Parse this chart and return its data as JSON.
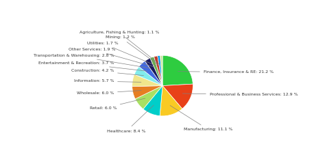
{
  "labels": [
    "Finance, Insurance & RE",
    "Professional & Business Services",
    "Manufacturing",
    "Healthcare",
    "Retail",
    "Wholesale",
    "Information",
    "Construction",
    "Entertainment & Recreation",
    "Transportation & Warehousing",
    "Other Services",
    "Utilities",
    "Mining",
    "Agriculture, Fishing & Hunting"
  ],
  "values": [
    21.2,
    12.9,
    11.1,
    8.4,
    6.0,
    6.0,
    5.7,
    4.2,
    3.7,
    2.8,
    1.9,
    1.7,
    1.2,
    1.1
  ],
  "colors": [
    "#2ecc40",
    "#e84118",
    "#f9ca24",
    "#00cec9",
    "#a8e063",
    "#e67e22",
    "#f0e68c",
    "#81ecec",
    "#4169e1",
    "#1a1a5e",
    "#6ab04c",
    "#c0392b",
    "#0097e6",
    "#c8e6a0"
  ],
  "background_color": "#ffffff",
  "border_color": "#00aaff",
  "legend_labels": [
    "Finance, Insurance & RE",
    "Professional & Business Services",
    "Manufacturing",
    "Healthcare",
    "Retail",
    "Wholesale",
    "Information",
    "Construction",
    "Entertainment & Recreation",
    "Transportation & Warehousing",
    "Other Services",
    "Utilities",
    "Mining",
    "Agriculture, Fishing & Hunting"
  ]
}
